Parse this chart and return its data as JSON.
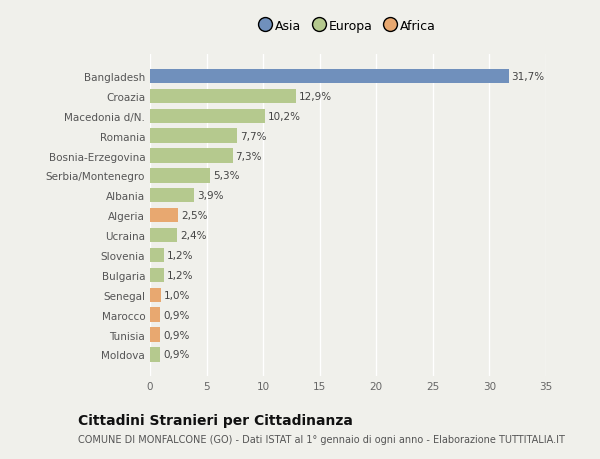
{
  "countries": [
    "Bangladesh",
    "Croazia",
    "Macedonia d/N.",
    "Romania",
    "Bosnia-Erzegovina",
    "Serbia/Montenegro",
    "Albania",
    "Algeria",
    "Ucraina",
    "Slovenia",
    "Bulgaria",
    "Senegal",
    "Marocco",
    "Tunisia",
    "Moldova"
  ],
  "values": [
    31.7,
    12.9,
    10.2,
    7.7,
    7.3,
    5.3,
    3.9,
    2.5,
    2.4,
    1.2,
    1.2,
    1.0,
    0.9,
    0.9,
    0.9
  ],
  "labels": [
    "31,7%",
    "12,9%",
    "10,2%",
    "7,7%",
    "7,3%",
    "5,3%",
    "3,9%",
    "2,5%",
    "2,4%",
    "1,2%",
    "1,2%",
    "1,0%",
    "0,9%",
    "0,9%",
    "0,9%"
  ],
  "continents": [
    "Asia",
    "Europa",
    "Europa",
    "Europa",
    "Europa",
    "Europa",
    "Europa",
    "Africa",
    "Europa",
    "Europa",
    "Europa",
    "Africa",
    "Africa",
    "Africa",
    "Europa"
  ],
  "colors": {
    "Asia": "#7090bc",
    "Europa": "#b5c98e",
    "Africa": "#e8a870"
  },
  "legend_order": [
    "Asia",
    "Europa",
    "Africa"
  ],
  "xlim": [
    0,
    35
  ],
  "xticks": [
    0,
    5,
    10,
    15,
    20,
    25,
    30,
    35
  ],
  "background_color": "#f0f0eb",
  "plot_background": "#f0f0eb",
  "grid_color": "#ffffff",
  "title": "Cittadini Stranieri per Cittadinanza",
  "subtitle": "COMUNE DI MONFALCONE (GO) - Dati ISTAT al 1° gennaio di ogni anno - Elaborazione TUTTITALIA.IT",
  "bar_height": 0.72,
  "label_fontsize": 7.5,
  "tick_fontsize": 7.5,
  "title_fontsize": 10,
  "subtitle_fontsize": 7
}
